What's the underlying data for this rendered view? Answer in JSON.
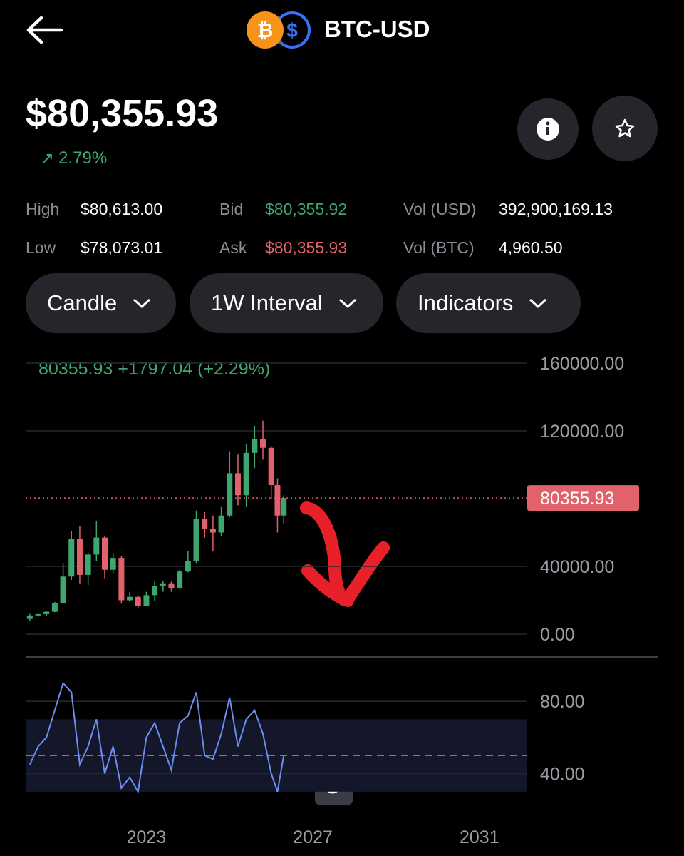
{
  "header": {
    "title": "BTC-USD",
    "price": "$80,355.93",
    "change": "2.79%"
  },
  "stats": {
    "rows": [
      [
        {
          "label": "High",
          "value": "$80,613.00"
        },
        {
          "label": "Bid",
          "value": "$80,355.92"
        },
        {
          "label": "Vol (USD)",
          "value": "392,900,169.13"
        }
      ],
      [
        {
          "label": "Low",
          "value": "$78,073.01"
        },
        {
          "label": "Ask",
          "value": "$80,355.93"
        },
        {
          "label": "Vol (BTC)",
          "value": "4,960.50"
        }
      ]
    ]
  },
  "buttons": [
    "Candle",
    "1W Interval",
    "Indicators"
  ],
  "chart": {
    "type": "candlestick",
    "legend": "80355.93 +1797.04 (+2.29%)",
    "last_price": 80355.93,
    "xlim": [
      2020.1,
      2032.15
    ],
    "xticks": [
      2023,
      2027,
      2031
    ],
    "ylim": [
      0,
      160000
    ],
    "yticks": [
      {
        "value": 160000,
        "label": "160000.00"
      },
      {
        "value": 120000,
        "label": "120000.00"
      },
      {
        "value": 40000,
        "label": "40000.00"
      },
      {
        "value": 0,
        "label": "0.00"
      }
    ],
    "up_color": "#3fa66f",
    "down_color": "#e0626b",
    "candles": {
      "x": [
        2020.2,
        2020.4,
        2020.6,
        2020.8,
        2021.0,
        2021.2,
        2021.4,
        2021.6,
        2021.8,
        2022.0,
        2022.2,
        2022.4,
        2022.6,
        2022.8,
        2023.0,
        2023.2,
        2023.4,
        2023.6,
        2023.8,
        2024.0,
        2024.2,
        2024.4,
        2024.6,
        2024.8,
        2025.0,
        2025.2,
        2025.4,
        2025.6,
        2025.8,
        2026.0,
        2026.15,
        2026.3
      ],
      "open": [
        9000,
        11000,
        11800,
        13200,
        18500,
        34000,
        56000,
        35000,
        47000,
        57000,
        38000,
        45000,
        20000,
        22000,
        16800,
        23000,
        28500,
        30000,
        27000,
        37000,
        43000,
        68000,
        62000,
        60000,
        70000,
        95000,
        82000,
        107000,
        115000,
        110000,
        88000,
        70000
      ],
      "high": [
        12000,
        12500,
        13500,
        19000,
        42000,
        61000,
        64000,
        48000,
        67000,
        58000,
        48000,
        46000,
        25000,
        23000,
        25000,
        31000,
        31500,
        31000,
        38000,
        49000,
        73000,
        72000,
        70000,
        75000,
        108000,
        106000,
        112000,
        123000,
        126000,
        111000,
        92000,
        82000
      ],
      "low": [
        8000,
        10500,
        10800,
        13000,
        18000,
        32000,
        30000,
        29000,
        43000,
        33000,
        36000,
        18000,
        19000,
        15500,
        16500,
        19500,
        25000,
        25000,
        26500,
        36500,
        42000,
        57000,
        49000,
        58000,
        69000,
        76000,
        75000,
        98000,
        103000,
        80000,
        60000,
        65000
      ],
      "close": [
        11000,
        11800,
        13200,
        18500,
        34000,
        56000,
        35000,
        47000,
        57000,
        38000,
        45000,
        20000,
        22000,
        16800,
        23000,
        28500,
        30000,
        27000,
        37000,
        43000,
        68000,
        62000,
        60000,
        70000,
        95000,
        82000,
        107000,
        115000,
        110000,
        88000,
        70000,
        80355.93
      ]
    },
    "rsi": {
      "color": "#6b8ff0",
      "ylim": [
        24,
        97
      ],
      "yticks": [
        {
          "value": 80,
          "label": "80.00"
        },
        {
          "value": 40,
          "label": "40.00"
        }
      ],
      "band": [
        30,
        70
      ],
      "midline": 50,
      "values": [
        45,
        55,
        60,
        75,
        90,
        85,
        45,
        55,
        70,
        40,
        55,
        32,
        38,
        30,
        60,
        68,
        55,
        42,
        68,
        72,
        85,
        50,
        48,
        62,
        82,
        55,
        70,
        75,
        62,
        40,
        30,
        50
      ]
    }
  }
}
